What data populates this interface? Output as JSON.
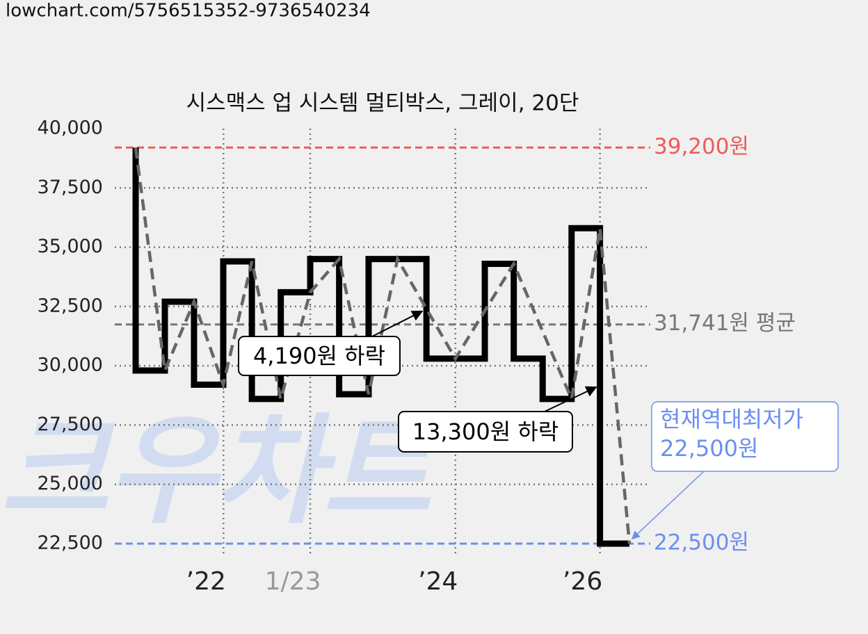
{
  "header": {
    "url": "lowchart.com/5756515352-9736540234"
  },
  "watermark": "크우차트",
  "chart_data": {
    "type": "step-line",
    "title": "시스맥스 업 시스템 멀티박스, 그레이, 20단",
    "xlim": [
      0,
      100
    ],
    "ylim": [
      22500,
      40000
    ],
    "yticks": [
      {
        "value": 22500,
        "label": "22,500"
      },
      {
        "value": 25000,
        "label": "25,000"
      },
      {
        "value": 27500,
        "label": "27,500"
      },
      {
        "value": 30000,
        "label": "30,000"
      },
      {
        "value": 32500,
        "label": "32,500"
      },
      {
        "value": 35000,
        "label": "35,000"
      },
      {
        "value": 37500,
        "label": "37,500"
      },
      {
        "value": 40000,
        "label": "40,000"
      }
    ],
    "xticks": [
      {
        "value": 20.3,
        "label": "’22",
        "color": "#222222"
      },
      {
        "value": 36.5,
        "label": "1/23",
        "color": "#999999"
      },
      {
        "value": 63.6,
        "label": "’24",
        "color": "#222222"
      },
      {
        "value": 90.6,
        "label": "’26",
        "color": "#222222"
      }
    ],
    "grid": true,
    "series": [
      {
        "name": "price",
        "color": "#000000",
        "style": "step",
        "x": [
          3.9,
          3.9,
          9.35,
          14.8,
          20.26,
          25.6,
          31.0,
          36.5,
          41.9,
          47.4,
          58.2,
          69.1,
          74.5,
          79.9,
          85.3,
          90.6,
          96.1
        ],
        "values": [
          39200,
          29800,
          32700,
          29200,
          34400,
          28600,
          33100,
          34500,
          28800,
          34500,
          30300,
          34300,
          30300,
          28600,
          35800,
          22500,
          22500
        ]
      },
      {
        "name": "trend",
        "color": "#666666",
        "style": "dashed",
        "x": [
          3.9,
          9.35,
          14.8,
          20.26,
          25.6,
          31.0,
          36.5,
          41.9,
          47.4,
          52.8,
          63.6,
          74.5,
          85.3,
          90.6,
          96.1
        ],
        "values": [
          39200,
          29800,
          32700,
          29200,
          34400,
          28600,
          33100,
          34500,
          28800,
          34500,
          30300,
          34300,
          28600,
          35800,
          22500
        ]
      }
    ],
    "ref_lines": [
      {
        "value": 39200,
        "label": "39,200원",
        "color": "#f05a5a"
      },
      {
        "value": 31741,
        "label": "31,741원 평균",
        "color": "#777777"
      },
      {
        "value": 22500,
        "label": "22,500원",
        "color": "#6b8ff0"
      }
    ],
    "annotations": [
      {
        "text": [
          "4,190원 하락"
        ],
        "x": 57.4,
        "y": 32300,
        "color": "#000000"
      },
      {
        "text": [
          "13,300원 하락"
        ],
        "x": 89.9,
        "y": 29100,
        "color": "#000000"
      },
      {
        "text": [
          "현재역대최저가",
          "22,500원"
        ],
        "x": 96.6,
        "y": 22700,
        "color": "#6b8ff0"
      }
    ]
  }
}
